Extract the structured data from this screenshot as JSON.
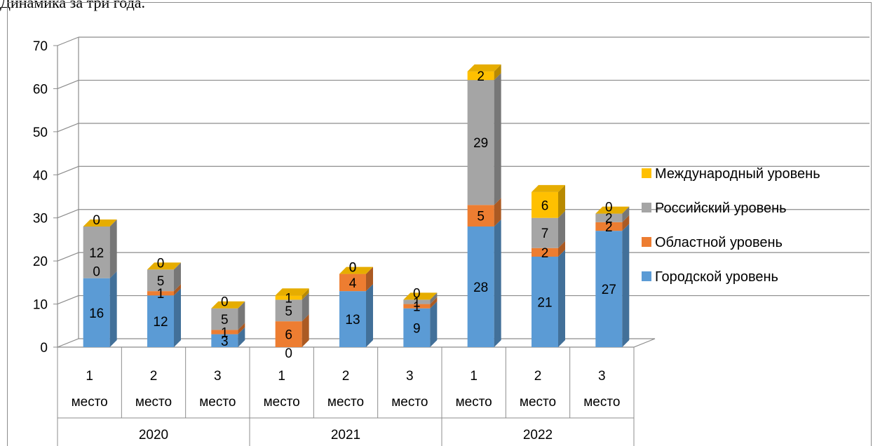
{
  "caption": "Динамика за три года.",
  "chart_data": {
    "type": "bar",
    "stacked": true,
    "three_d": true,
    "ylim": [
      0,
      70
    ],
    "yticks": [
      0,
      10,
      20,
      30,
      40,
      50,
      60,
      70
    ],
    "categories": [
      {
        "line1": "1",
        "line2": "место",
        "group": "2020"
      },
      {
        "line1": "2",
        "line2": "место",
        "group": "2020"
      },
      {
        "line1": "3",
        "line2": "место",
        "group": "2020"
      },
      {
        "line1": "1",
        "line2": "место",
        "group": "2021"
      },
      {
        "line1": "2",
        "line2": "место",
        "group": "2021"
      },
      {
        "line1": "3",
        "line2": "место",
        "group": "2021"
      },
      {
        "line1": "1",
        "line2": "место",
        "group": "2022"
      },
      {
        "line1": "2",
        "line2": "место",
        "group": "2022"
      },
      {
        "line1": "3",
        "line2": "место",
        "group": "2022"
      }
    ],
    "groups": [
      "2020",
      "2021",
      "2022"
    ],
    "series": [
      {
        "name": "Городской уровень",
        "color": "#5b9bd5",
        "values": [
          16,
          12,
          3,
          0,
          13,
          9,
          28,
          21,
          27
        ]
      },
      {
        "name": "Областной уровень",
        "color": "#ed7d31",
        "values": [
          0,
          1,
          1,
          6,
          4,
          1,
          5,
          2,
          2
        ]
      },
      {
        "name": "Российский уровень",
        "color": "#a5a5a5",
        "values": [
          12,
          5,
          5,
          5,
          0,
          1,
          29,
          7,
          2
        ]
      },
      {
        "name": "Международный уровень",
        "color": "#ffc000",
        "values": [
          0,
          0,
          0,
          1,
          0,
          0,
          2,
          6,
          0
        ]
      }
    ],
    "legend_position": "right",
    "grid": true
  }
}
